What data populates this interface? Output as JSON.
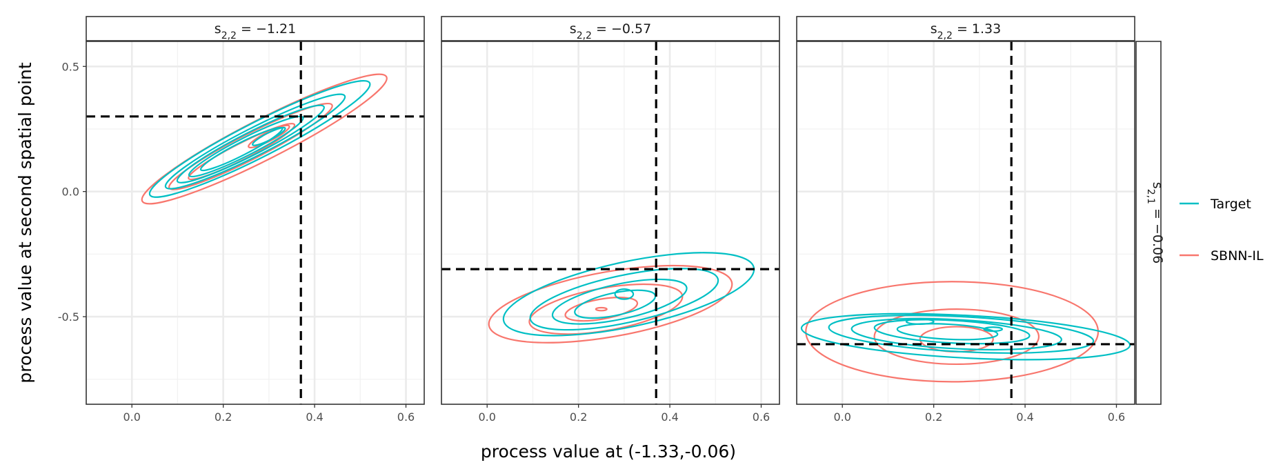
{
  "chart_data": {
    "type": "contour",
    "xlabel": "process value at (-1.33,-0.06)",
    "ylabel": "process value at second spatial point",
    "xlim": [
      -0.1,
      0.64
    ],
    "ylim": [
      -0.85,
      0.6
    ],
    "x_ticks": [
      "0.0",
      "0.2",
      "0.4",
      "0.6"
    ],
    "y_ticks": [
      "0.5",
      "0.0",
      "-0.5"
    ],
    "row_strip": {
      "prefix": "s",
      "sub": "2,1",
      "eq": " = −0.06"
    },
    "legend": [
      {
        "name": "Target",
        "color": "#00BFC4"
      },
      {
        "name": "SBNN-IL",
        "color": "#F8766D"
      }
    ],
    "panels": [
      {
        "strip": {
          "prefix": "s",
          "sub": "2,2",
          "eq": " = −1.21"
        },
        "vline": 0.37,
        "hline": 0.3,
        "series": {
          "Target": [
            {
              "cx": 0.28,
              "cy": 0.21,
              "rx": 0.27,
              "ry": 0.07,
              "angle": 27
            },
            {
              "cx": 0.27,
              "cy": 0.2,
              "rx": 0.22,
              "ry": 0.055,
              "angle": 27
            },
            {
              "cx": 0.26,
              "cy": 0.19,
              "rx": 0.18,
              "ry": 0.045,
              "angle": 27
            },
            {
              "cx": 0.25,
              "cy": 0.18,
              "rx": 0.14,
              "ry": 0.035,
              "angle": 27
            },
            {
              "cx": 0.24,
              "cy": 0.17,
              "rx": 0.1,
              "ry": 0.025,
              "angle": 27
            },
            {
              "cx": 0.3,
              "cy": 0.22,
              "rx": 0.04,
              "ry": 0.014,
              "angle": 27
            }
          ],
          "SBNN-IL": [
            {
              "cx": 0.29,
              "cy": 0.21,
              "rx": 0.3,
              "ry": 0.08,
              "angle": 27
            },
            {
              "cx": 0.26,
              "cy": 0.18,
              "rx": 0.2,
              "ry": 0.05,
              "angle": 27
            },
            {
              "cx": 0.24,
              "cy": 0.16,
              "rx": 0.13,
              "ry": 0.032,
              "angle": 27
            },
            {
              "cx": 0.3,
              "cy": 0.22,
              "rx": 0.05,
              "ry": 0.018,
              "angle": 27
            }
          ]
        }
      },
      {
        "strip": {
          "prefix": "s",
          "sub": "2,2",
          "eq": " = −0.57"
        },
        "vline": 0.37,
        "hline": -0.31,
        "series": {
          "Target": [
            {
              "cx": 0.31,
              "cy": -0.41,
              "rx": 0.28,
              "ry": 0.13,
              "angle": 12
            },
            {
              "cx": 0.3,
              "cy": -0.43,
              "rx": 0.21,
              "ry": 0.095,
              "angle": 12
            },
            {
              "cx": 0.29,
              "cy": -0.44,
              "rx": 0.15,
              "ry": 0.07,
              "angle": 12
            },
            {
              "cx": 0.28,
              "cy": -0.45,
              "rx": 0.09,
              "ry": 0.045,
              "angle": 12
            },
            {
              "cx": 0.3,
              "cy": -0.41,
              "rx": 0.02,
              "ry": 0.02,
              "angle": 0
            }
          ],
          "SBNN-IL": [
            {
              "cx": 0.27,
              "cy": -0.45,
              "rx": 0.27,
              "ry": 0.13,
              "angle": 10
            },
            {
              "cx": 0.26,
              "cy": -0.47,
              "rx": 0.17,
              "ry": 0.085,
              "angle": 10
            },
            {
              "cx": 0.25,
              "cy": -0.47,
              "rx": 0.08,
              "ry": 0.04,
              "angle": 10
            },
            {
              "cx": 0.25,
              "cy": -0.47,
              "rx": 0.012,
              "ry": 0.006,
              "angle": 0
            }
          ]
        }
      },
      {
        "strip": {
          "prefix": "s",
          "sub": "2,2",
          "eq": " = 1.33"
        },
        "vline": 0.37,
        "hline": -0.61,
        "series": {
          "Target": [
            {
              "cx": 0.27,
              "cy": -0.58,
              "rx": 0.36,
              "ry": 0.085,
              "angle": -3
            },
            {
              "cx": 0.26,
              "cy": -0.57,
              "rx": 0.29,
              "ry": 0.07,
              "angle": -3
            },
            {
              "cx": 0.25,
              "cy": -0.57,
              "rx": 0.23,
              "ry": 0.058,
              "angle": -3
            },
            {
              "cx": 0.24,
              "cy": -0.56,
              "rx": 0.17,
              "ry": 0.045,
              "angle": -3
            },
            {
              "cx": 0.23,
              "cy": -0.56,
              "rx": 0.11,
              "ry": 0.03,
              "angle": -3
            },
            {
              "cx": 0.17,
              "cy": -0.52,
              "rx": 0.03,
              "ry": 0.01,
              "angle": 0
            },
            {
              "cx": 0.33,
              "cy": -0.55,
              "rx": 0.02,
              "ry": 0.008,
              "angle": 0
            }
          ],
          "SBNN-IL": [
            {
              "cx": 0.24,
              "cy": -0.56,
              "rx": 0.32,
              "ry": 0.2,
              "angle": 0
            },
            {
              "cx": 0.25,
              "cy": -0.58,
              "rx": 0.18,
              "ry": 0.11,
              "angle": 0
            },
            {
              "cx": 0.25,
              "cy": -0.59,
              "rx": 0.08,
              "ry": 0.05,
              "angle": 0
            }
          ]
        }
      }
    ]
  }
}
